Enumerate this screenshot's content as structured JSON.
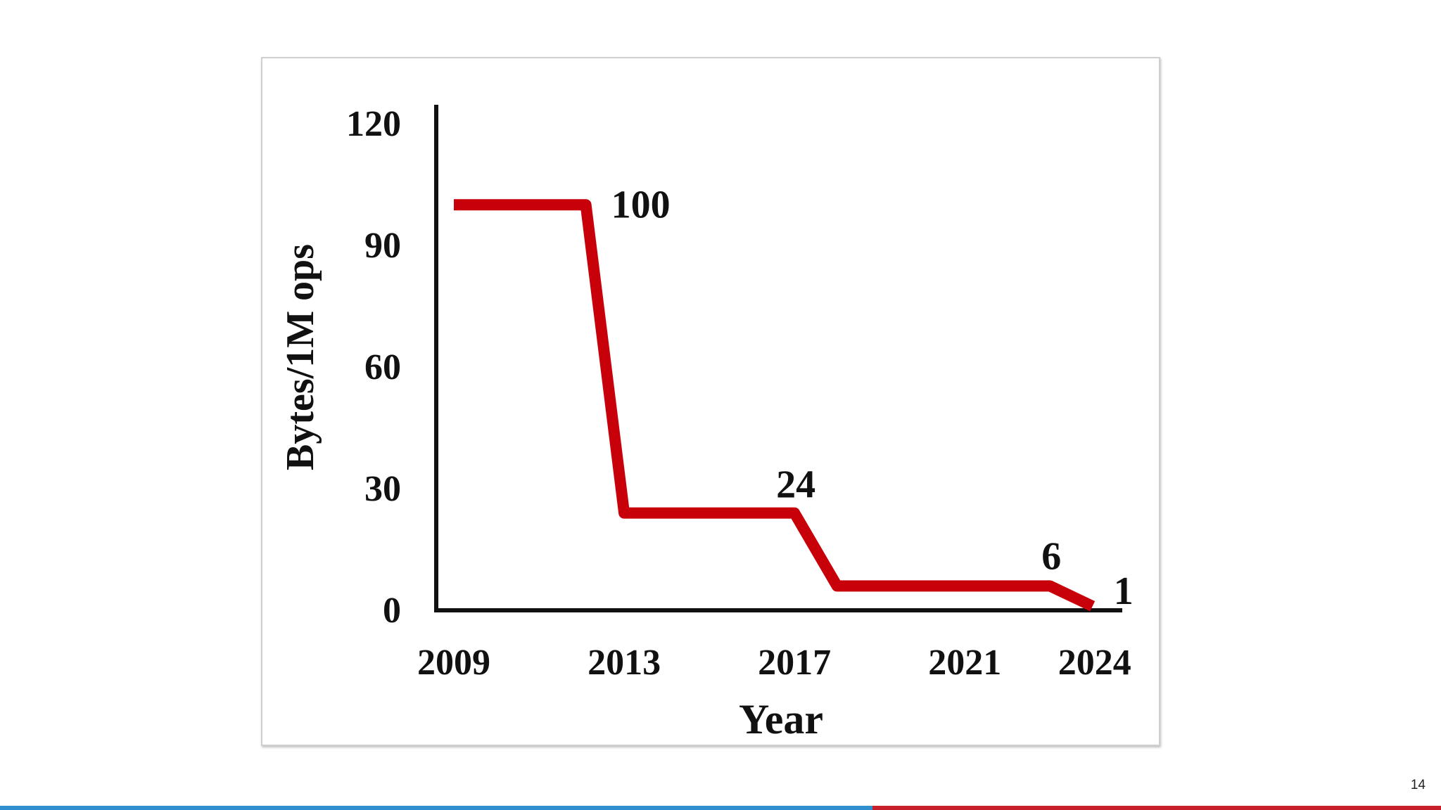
{
  "slide": {
    "page_number": "14"
  },
  "footer": {
    "left_color": "#2f8fcf",
    "right_color": "#c8202a"
  },
  "chart_data": {
    "type": "line",
    "title": "",
    "xlabel": "Year",
    "ylabel": "Bytes/1M ops",
    "x_ticks": [
      "2009",
      "2013",
      "2017",
      "2021",
      "2024"
    ],
    "y_ticks": [
      "0",
      "30",
      "60",
      "90",
      "120"
    ],
    "xlim": [
      2009,
      2024.5
    ],
    "ylim": [
      0,
      120
    ],
    "series": [
      {
        "color": "#c8000a",
        "points": [
          {
            "x": 2009,
            "y": 100
          },
          {
            "x": 2012.1,
            "y": 100
          },
          {
            "x": 2013,
            "y": 24
          },
          {
            "x": 2017,
            "y": 24
          },
          {
            "x": 2018,
            "y": 6
          },
          {
            "x": 2023,
            "y": 6
          },
          {
            "x": 2024,
            "y": 1
          }
        ]
      }
    ],
    "annotations": [
      {
        "text": "100",
        "x": 2012.1,
        "y": 100
      },
      {
        "text": "24",
        "x": 2017,
        "y": 24
      },
      {
        "text": "6",
        "x": 2023,
        "y": 6
      },
      {
        "text": "1",
        "x": 2024,
        "y": 1
      }
    ],
    "grid": false,
    "legend": "none"
  }
}
